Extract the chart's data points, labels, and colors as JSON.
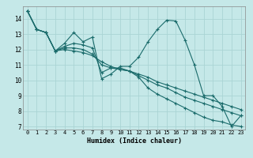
{
  "title": "",
  "xlabel": "Humidex (Indice chaleur)",
  "ylabel": "",
  "background_color": "#c5e8e8",
  "grid_color": "#aad4d4",
  "line_color": "#1a6b6b",
  "xlim": [
    -0.5,
    23.5
  ],
  "ylim": [
    6.8,
    14.8
  ],
  "yticks": [
    7,
    8,
    9,
    10,
    11,
    12,
    13,
    14
  ],
  "xticks": [
    0,
    1,
    2,
    3,
    4,
    5,
    6,
    7,
    8,
    9,
    10,
    11,
    12,
    13,
    14,
    15,
    16,
    17,
    18,
    19,
    20,
    21,
    22,
    23
  ],
  "series": [
    [
      14.5,
      13.3,
      13.1,
      11.9,
      12.4,
      13.1,
      12.5,
      12.8,
      10.1,
      10.4,
      10.9,
      10.9,
      11.5,
      12.5,
      13.3,
      13.9,
      13.85,
      12.6,
      11.0,
      9.0,
      9.0,
      8.3,
      7.0,
      7.7
    ],
    [
      14.5,
      13.3,
      13.1,
      11.9,
      12.2,
      12.4,
      12.3,
      12.1,
      10.5,
      10.8,
      10.8,
      10.6,
      10.2,
      9.5,
      9.1,
      8.8,
      8.5,
      8.2,
      7.9,
      7.6,
      7.4,
      7.3,
      7.1,
      7.0
    ],
    [
      14.5,
      13.3,
      13.1,
      11.9,
      12.1,
      12.1,
      12.0,
      11.7,
      11.0,
      10.8,
      10.7,
      10.6,
      10.3,
      10.0,
      9.7,
      9.5,
      9.2,
      8.9,
      8.7,
      8.5,
      8.3,
      8.1,
      7.9,
      7.7
    ],
    [
      14.5,
      13.3,
      13.1,
      11.9,
      12.0,
      11.9,
      11.8,
      11.6,
      11.2,
      10.9,
      10.7,
      10.6,
      10.4,
      10.2,
      9.9,
      9.7,
      9.5,
      9.3,
      9.1,
      8.9,
      8.7,
      8.5,
      8.3,
      8.1
    ]
  ]
}
